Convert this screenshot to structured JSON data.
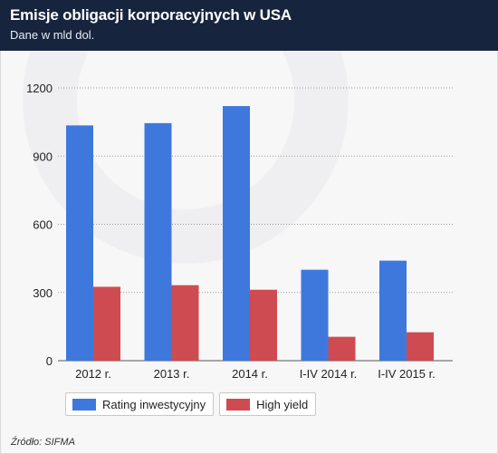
{
  "header": {
    "title": "Emisje obligacji korporacyjnych w USA",
    "subtitle": "Dane w mld dol."
  },
  "source": "Źródło: SIFMA",
  "colors": {
    "header_bg": "#16243e",
    "rating": "#3f78dc",
    "high_yield": "#cf4b52",
    "watermark": "#e9e9ec"
  },
  "chart_data": {
    "type": "bar",
    "categories": [
      "2012 r.",
      "2013 r.",
      "2014 r.",
      "I-IV 2014 r.",
      "I-IV 2015 r."
    ],
    "series": [
      {
        "name": "Rating inwestycyjny",
        "color": "#3f78dc",
        "values": [
          1035,
          1045,
          1120,
          400,
          440
        ]
      },
      {
        "name": "High yield",
        "color": "#cf4b52",
        "values": [
          325,
          332,
          312,
          105,
          125
        ]
      }
    ],
    "yticks": [
      0,
      300,
      600,
      900,
      1200
    ],
    "ylim": [
      0,
      1200
    ],
    "grid": true,
    "legend_position": "bottom-left"
  }
}
